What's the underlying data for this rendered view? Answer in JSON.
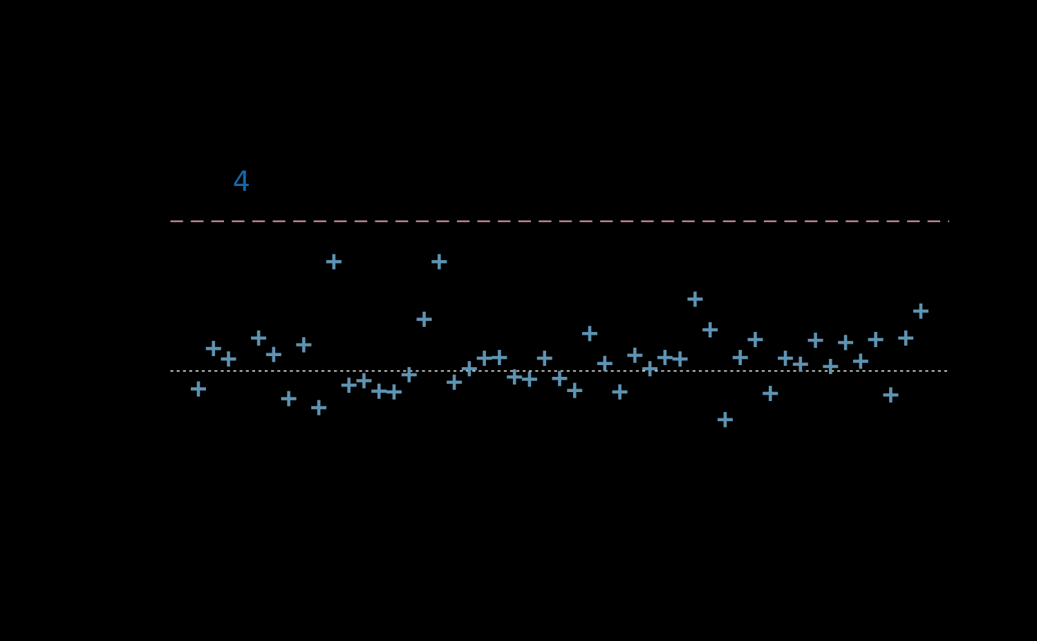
{
  "page": {
    "background_color": "#000000",
    "title": ""
  },
  "chart_data": {
    "type": "scatter",
    "title": "",
    "xlabel": "",
    "ylabel": "",
    "axes_visible": false,
    "grid": false,
    "legend": "none",
    "marker_glyph": "plus",
    "marker_color": "#5E93B2",
    "x_range_shown": [
      1,
      49
    ],
    "y_scale_note": "no axis labels visible; y=0 at dotted baseline, dashed threshold line at +2",
    "points": [
      {
        "x": 1,
        "y": -0.24
      },
      {
        "x": 2,
        "y": 0.3
      },
      {
        "x": 3,
        "y": 0.16
      },
      {
        "x": 5,
        "y": 0.44
      },
      {
        "x": 6,
        "y": 0.22
      },
      {
        "x": 7,
        "y": -0.37
      },
      {
        "x": 8,
        "y": 0.35
      },
      {
        "x": 9,
        "y": -0.49
      },
      {
        "x": 10,
        "y": 1.46
      },
      {
        "x": 11,
        "y": -0.19
      },
      {
        "x": 12,
        "y": -0.13
      },
      {
        "x": 13,
        "y": -0.27
      },
      {
        "x": 14,
        "y": -0.28
      },
      {
        "x": 15,
        "y": -0.05
      },
      {
        "x": 16,
        "y": 0.69
      },
      {
        "x": 17,
        "y": 1.46
      },
      {
        "x": 18,
        "y": -0.15
      },
      {
        "x": 19,
        "y": 0.03
      },
      {
        "x": 20,
        "y": 0.17
      },
      {
        "x": 21,
        "y": 0.18
      },
      {
        "x": 22,
        "y": -0.08
      },
      {
        "x": 23,
        "y": -0.11
      },
      {
        "x": 24,
        "y": 0.17
      },
      {
        "x": 25,
        "y": -0.1
      },
      {
        "x": 26,
        "y": -0.26
      },
      {
        "x": 27,
        "y": 0.5
      },
      {
        "x": 28,
        "y": 0.1
      },
      {
        "x": 29,
        "y": -0.28
      },
      {
        "x": 30,
        "y": 0.21
      },
      {
        "x": 31,
        "y": 0.03
      },
      {
        "x": 32,
        "y": 0.18
      },
      {
        "x": 33,
        "y": 0.16
      },
      {
        "x": 34,
        "y": 0.96
      },
      {
        "x": 35,
        "y": 0.55
      },
      {
        "x": 36,
        "y": -0.65
      },
      {
        "x": 37,
        "y": 0.18
      },
      {
        "x": 38,
        "y": 0.42
      },
      {
        "x": 39,
        "y": -0.3
      },
      {
        "x": 40,
        "y": 0.17
      },
      {
        "x": 41,
        "y": 0.09
      },
      {
        "x": 42,
        "y": 0.41
      },
      {
        "x": 43,
        "y": 0.06
      },
      {
        "x": 44,
        "y": 0.38
      },
      {
        "x": 45,
        "y": 0.13
      },
      {
        "x": 46,
        "y": 0.42
      },
      {
        "x": 47,
        "y": -0.32
      },
      {
        "x": 48,
        "y": 0.44
      },
      {
        "x": 49,
        "y": 0.8
      }
    ],
    "reference_lines": [
      {
        "name": "upper-threshold",
        "y": 2.0,
        "style": "dashed",
        "color": "#BE8A92"
      },
      {
        "name": "baseline",
        "y": 0.0,
        "style": "dotted",
        "color": "#D4D4D4"
      }
    ],
    "annotations": [
      {
        "text": "4",
        "x": 4,
        "y": 2.54,
        "color": "#1469AA"
      }
    ]
  }
}
